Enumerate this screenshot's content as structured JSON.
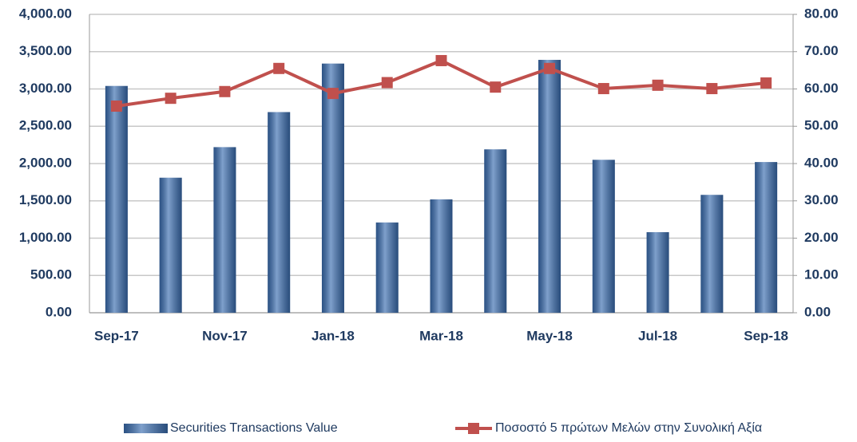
{
  "chart_data": {
    "type": "bar",
    "categories": [
      "Sep-17",
      null,
      "Nov-17",
      null,
      "Jan-18",
      null,
      "Mar-18",
      null,
      "May-18",
      null,
      "Jul-18",
      null,
      "Sep-18"
    ],
    "series": [
      {
        "name": "Securities Transactions Value",
        "type": "bar",
        "color": "#3a6db0",
        "values": [
          3040,
          1810,
          2220,
          2690,
          3340,
          1210,
          1520,
          2190,
          3390,
          2050,
          1080,
          1580,
          2020
        ]
      },
      {
        "name": "Ποσοστό 5 πρώτων Μελών στην Συνολική Αξία",
        "type": "line",
        "axis": "y2",
        "color": "#c0504d",
        "values": [
          55.4,
          57.5,
          59.3,
          65.5,
          58.8,
          61.7,
          67.6,
          60.5,
          65.5,
          60.1,
          61.0,
          60.1,
          61.6
        ]
      }
    ],
    "ylim": [
      0,
      4000
    ],
    "yticks": [
      {
        "value": 0,
        "label": "0.00"
      },
      {
        "value": 500,
        "label": "500.00"
      },
      {
        "value": 1000,
        "label": "1,000.00"
      },
      {
        "value": 1500,
        "label": "1,500.00"
      },
      {
        "value": 2000,
        "label": "2,000.00"
      },
      {
        "value": 2500,
        "label": "2,500.00"
      },
      {
        "value": 3000,
        "label": "3,000.00"
      },
      {
        "value": 3500,
        "label": "3,500.00"
      },
      {
        "value": 4000,
        "label": "4,000.00"
      }
    ],
    "y2lim": [
      0,
      80
    ],
    "y2ticks": [
      {
        "value": 0,
        "label": "0.00"
      },
      {
        "value": 10,
        "label": "10.00"
      },
      {
        "value": 20,
        "label": "20.00"
      },
      {
        "value": 30,
        "label": "30.00"
      },
      {
        "value": 40,
        "label": "40.00"
      },
      {
        "value": 50,
        "label": "50.00"
      },
      {
        "value": 60,
        "label": "60.00"
      },
      {
        "value": 70,
        "label": "70.00"
      },
      {
        "value": 80,
        "label": "80.00"
      }
    ],
    "grid": true,
    "legend": "bottom"
  }
}
